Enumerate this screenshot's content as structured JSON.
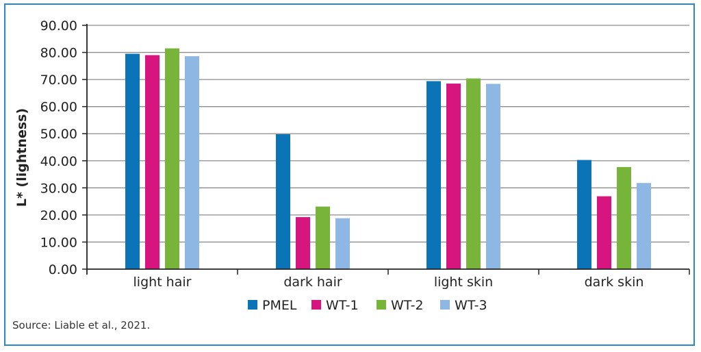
{
  "chart_data": {
    "type": "bar",
    "categories": [
      "light hair",
      "dark hair",
      "light skin",
      "dark skin"
    ],
    "series": [
      {
        "name": "PMEL",
        "color": "#0a74b6",
        "values": [
          79.5,
          49.8,
          69.4,
          40.3
        ]
      },
      {
        "name": "WT-1",
        "color": "#d6157e",
        "values": [
          79.0,
          19.2,
          68.5,
          26.9
        ]
      },
      {
        "name": "WT-2",
        "color": "#79b43a",
        "values": [
          81.5,
          23.1,
          70.4,
          37.7
        ]
      },
      {
        "name": "WT-3",
        "color": "#8fb7e3",
        "values": [
          78.6,
          18.8,
          68.4,
          31.8
        ]
      }
    ],
    "ylabel": "L* (lightness)",
    "xlabel": "",
    "ylim": [
      0,
      90
    ],
    "yticks": [
      "0.00",
      "10.00",
      "20.00",
      "30.00",
      "40.00",
      "50.00",
      "60.00",
      "70.00",
      "80.00",
      "90.00"
    ],
    "grid": true,
    "legend": "bottom"
  },
  "source": "Source: Liable et al., 2021."
}
